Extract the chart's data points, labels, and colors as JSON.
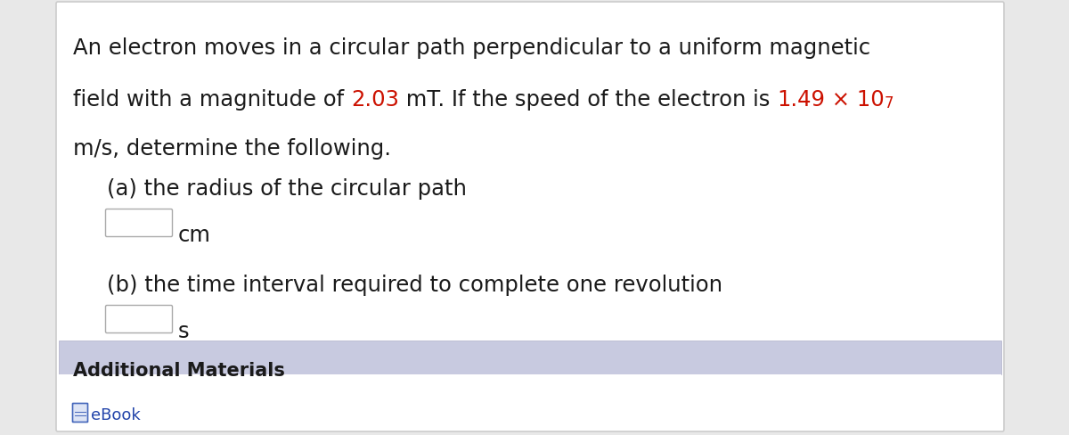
{
  "bg_color": "#e8e8e8",
  "panel_color": "#ffffff",
  "panel_border_color": "#cccccc",
  "add_header_color": "#c8cae0",
  "add_body_color": "#ffffff",
  "text_black": "#1a1a1a",
  "text_red": "#cc1100",
  "text_blue": "#2244aa",
  "line1": "An electron moves in a circular path perpendicular to a uniform magnetic",
  "line2_seg1": "field with a magnitude of ",
  "line2_red1": "2.03",
  "line2_seg2": " mT. If the speed of the electron is ",
  "line2_red2": "1.49",
  "line2_red3": " × 10",
  "line2_sup": "7",
  "line3": "m/s, determine the following.",
  "part_a": "(a) the radius of the circular path",
  "unit_a": "cm",
  "part_b": "(b) the time interval required to complete one revolution",
  "unit_b": "s",
  "add_title": "Additional Materials",
  "ebook_text": "eBook",
  "fs": 17.5,
  "fs_super": 12,
  "fs_add": 15,
  "fs_ebook": 13
}
